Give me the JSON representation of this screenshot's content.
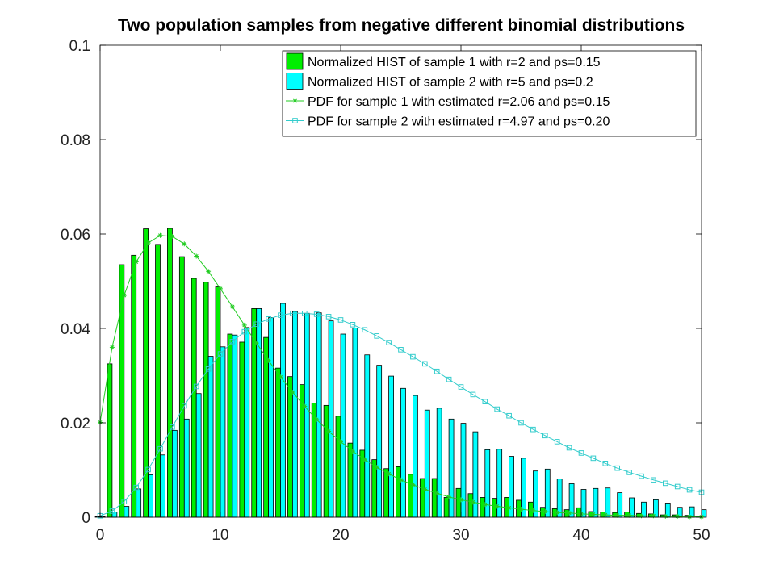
{
  "chart_data": {
    "type": "bar",
    "title": "Two population samples from negative different binomial distributions",
    "xlabel": "",
    "ylabel": "",
    "xlim": [
      0,
      50
    ],
    "ylim": [
      0,
      0.1
    ],
    "x_ticks": [
      "0",
      "10",
      "20",
      "30",
      "40",
      "50"
    ],
    "y_ticks": [
      "0",
      "0.02",
      "0.04",
      "0.06",
      "0.08",
      "0.1"
    ],
    "grid": false,
    "legend_position": "top-right",
    "x": [
      0,
      1,
      2,
      3,
      4,
      5,
      6,
      7,
      8,
      9,
      10,
      11,
      12,
      13,
      14,
      15,
      16,
      17,
      18,
      19,
      20,
      21,
      22,
      23,
      24,
      25,
      26,
      27,
      28,
      29,
      30,
      31,
      32,
      33,
      34,
      35,
      36,
      37,
      38,
      39,
      40,
      41,
      42,
      43,
      44,
      45,
      46,
      47,
      48,
      49,
      50
    ],
    "series": [
      {
        "name": "Normalized HIST of sample 1 with r=2 and ps=0.15",
        "kind": "bar",
        "color": "#00ee00",
        "values": [
          0.0001,
          0.0325,
          0.0535,
          0.0555,
          0.0611,
          0.0578,
          0.0612,
          0.0552,
          0.0506,
          0.0498,
          0.0488,
          0.0388,
          0.0371,
          0.0442,
          0.0381,
          0.0316,
          0.0298,
          0.0281,
          0.0242,
          0.0237,
          0.0214,
          0.0157,
          0.0142,
          0.0122,
          0.0103,
          0.0107,
          0.0091,
          0.0082,
          0.0082,
          0.0042,
          0.0061,
          0.005,
          0.0042,
          0.004,
          0.0042,
          0.0036,
          0.0032,
          0.0021,
          0.0018,
          0.0016,
          0.002,
          0.0012,
          0.0011,
          0.001,
          0.0011,
          0.0008,
          0.0007,
          0.0005,
          0.0005,
          0.0004,
          0.0001
        ]
      },
      {
        "name": "Normalized HIST of sample 2 with r=5 and ps=0.2",
        "kind": "bar",
        "color": "#00ffff",
        "values": [
          0.0001,
          0.0011,
          0.0023,
          0.006,
          0.009,
          0.0132,
          0.0184,
          0.0208,
          0.0262,
          0.0341,
          0.0361,
          0.0386,
          0.0402,
          0.0442,
          0.0423,
          0.0453,
          0.0436,
          0.0432,
          0.0433,
          0.0416,
          0.0388,
          0.0401,
          0.0344,
          0.0322,
          0.0299,
          0.0273,
          0.0258,
          0.0227,
          0.0231,
          0.0208,
          0.0199,
          0.0181,
          0.0143,
          0.0144,
          0.0129,
          0.0125,
          0.0098,
          0.0102,
          0.0081,
          0.0071,
          0.0059,
          0.0061,
          0.0062,
          0.0052,
          0.0041,
          0.0032,
          0.0037,
          0.003,
          0.0021,
          0.0022,
          0.0016
        ]
      },
      {
        "name": "PDF for sample 1 with estimated r=2.06 and ps=0.15",
        "kind": "line",
        "marker": "asterisk",
        "color": "#22cc22",
        "values": [
          0.0201,
          0.036,
          0.047,
          0.0541,
          0.0581,
          0.0597,
          0.0595,
          0.0579,
          0.0553,
          0.0521,
          0.0484,
          0.0446,
          0.0407,
          0.0369,
          0.0332,
          0.0297,
          0.0265,
          0.0235,
          0.0207,
          0.0182,
          0.016,
          0.014,
          0.0122,
          0.0106,
          0.0092,
          0.0079,
          0.0069,
          0.0059,
          0.0051,
          0.0043,
          0.0037,
          0.0032,
          0.0027,
          0.0023,
          0.002,
          0.0017,
          0.0014,
          0.0012,
          0.001,
          0.0009,
          0.0007,
          0.0006,
          0.0005,
          0.0004,
          0.0004,
          0.0003,
          0.0003,
          0.0002,
          0.0002,
          0.0001,
          0.0001
        ]
      },
      {
        "name": "PDF for sample 2 with estimated r=4.97 and ps=0.20",
        "kind": "line",
        "marker": "square",
        "color": "#33cccc",
        "values": [
          0.0003,
          0.0013,
          0.0033,
          0.0063,
          0.0101,
          0.0145,
          0.0191,
          0.0236,
          0.0277,
          0.0314,
          0.0346,
          0.0372,
          0.0393,
          0.0409,
          0.042,
          0.0428,
          0.0432,
          0.0432,
          0.043,
          0.0425,
          0.0418,
          0.0408,
          0.0397,
          0.0384,
          0.037,
          0.0355,
          0.034,
          0.0325,
          0.0309,
          0.0292,
          0.0276,
          0.026,
          0.0245,
          0.0229,
          0.0215,
          0.02,
          0.0186,
          0.0173,
          0.016,
          0.0147,
          0.0136,
          0.0125,
          0.0114,
          0.0104,
          0.0095,
          0.0087,
          0.0079,
          0.0072,
          0.0065,
          0.0058,
          0.0053
        ]
      }
    ]
  }
}
